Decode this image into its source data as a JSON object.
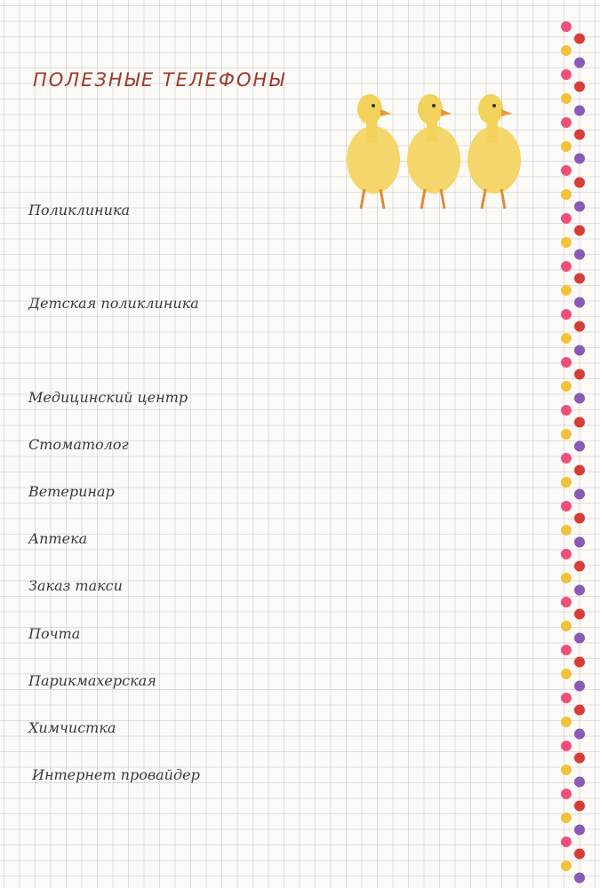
{
  "title": "ПОЛЕЗНЫЕ ТЕЛЕФОНЫ",
  "entries": [
    "Поликлиника",
    "Детская поликлиника",
    "Медицинский центр",
    "Стоматолог",
    "Ветеринар",
    "Аптека",
    "Заказ такси",
    "Почта",
    "Парикмахерская",
    "Химчистка",
    "Интернет провайдер"
  ]
}
